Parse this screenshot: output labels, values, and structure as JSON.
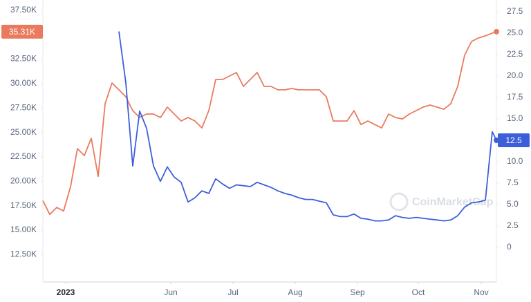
{
  "chart_data": {
    "type": "line",
    "watermark": "CoinMarketCap",
    "x": [
      0,
      1,
      2,
      3,
      4,
      5,
      6,
      7,
      8,
      9,
      10,
      11,
      12,
      13,
      14,
      15,
      16,
      17,
      18,
      19,
      20,
      21,
      22,
      23,
      24,
      25,
      26,
      27,
      28,
      29,
      30,
      31,
      32,
      33,
      34,
      35,
      36,
      37,
      38,
      39,
      40,
      41,
      42,
      43,
      44,
      45,
      46,
      47,
      48,
      49,
      50,
      51,
      52,
      53,
      54,
      55,
      56,
      57,
      58,
      59,
      60,
      61,
      62,
      63,
      64,
      65,
      65.6
    ],
    "xlim": [
      0,
      65.6
    ],
    "xticks": [
      {
        "value": 3.3,
        "label": "2023"
      },
      {
        "value": 18.5,
        "label": "Jun"
      },
      {
        "value": 27.5,
        "label": "Jul"
      },
      {
        "value": 36.5,
        "label": "Aug"
      },
      {
        "value": 45.5,
        "label": "Sep"
      },
      {
        "value": 54.3,
        "label": "Oct"
      },
      {
        "value": 63.4,
        "label": "Nov"
      }
    ],
    "ylim": [
      9700,
      38550
    ],
    "yticks": [
      {
        "value": 12500,
        "label": "12.50K"
      },
      {
        "value": 15000,
        "label": "15.00K"
      },
      {
        "value": 17500,
        "label": "17.50K"
      },
      {
        "value": 20000,
        "label": "20.00K"
      },
      {
        "value": 22500,
        "label": "22.50K"
      },
      {
        "value": 25000,
        "label": "25.00K"
      },
      {
        "value": 27500,
        "label": "27.50K"
      },
      {
        "value": 30000,
        "label": "30.00K"
      },
      {
        "value": 32500,
        "label": "32.50K"
      },
      {
        "value": 35000,
        "label": "35.00K"
      },
      {
        "value": 37500,
        "label": "37.50K"
      }
    ],
    "y2lim": [
      -4.03,
      28.87
    ],
    "y2ticks": [
      0,
      2.5,
      {
        "value": 5,
        "label": "5.0"
      },
      7.5,
      {
        "value": 10,
        "label": "10.0"
      },
      12.5,
      {
        "value": 15,
        "label": "15.0"
      },
      17.5,
      {
        "value": 20,
        "label": "20.0"
      },
      22.5,
      {
        "value": 25,
        "label": "25.0"
      },
      27.5
    ],
    "series": [
      {
        "color": "#ea7a5e",
        "axis": "y",
        "values": [
          18020,
          16610,
          17320,
          16960,
          19440,
          23340,
          22630,
          24400,
          20500,
          27940,
          30060,
          29360,
          28650,
          27230,
          26520,
          26880,
          26880,
          26520,
          27590,
          26880,
          26170,
          26520,
          26170,
          25460,
          27230,
          30420,
          30420,
          30770,
          31130,
          29710,
          30420,
          31130,
          29710,
          29710,
          29360,
          29360,
          29500,
          29360,
          29360,
          29360,
          29360,
          28650,
          26170,
          26170,
          26170,
          27230,
          25810,
          26170,
          25810,
          25460,
          26880,
          26520,
          26380,
          26880,
          27230,
          27590,
          27800,
          27590,
          27370,
          27940,
          29710,
          32900,
          34310,
          34670,
          34880,
          35160,
          35310
        ],
        "value_labels": [
          null,
          null,
          null,
          null,
          null,
          null,
          null,
          null,
          null,
          null,
          null,
          null,
          null,
          null,
          null,
          null,
          null,
          null,
          null,
          null,
          null,
          null,
          null,
          null,
          null,
          null,
          null,
          null,
          null,
          null,
          null,
          null,
          null,
          null,
          null,
          null,
          null,
          null,
          null,
          null,
          null,
          null,
          null,
          null,
          null,
          null,
          null,
          null,
          null,
          null,
          null,
          null,
          null,
          null,
          null,
          null,
          null,
          null,
          null,
          null,
          null,
          null,
          null,
          null,
          null,
          null,
          "35.31K"
        ]
      },
      {
        "color": "#3b5fd9",
        "axis": "y2",
        "values": [
          null,
          null,
          null,
          null,
          null,
          null,
          null,
          null,
          null,
          null,
          null,
          25.2,
          19.2,
          9.5,
          15.9,
          13.9,
          9.5,
          7.7,
          9.4,
          8.2,
          7.6,
          5.3,
          5.8,
          6.6,
          6.3,
          8.0,
          7.4,
          6.9,
          7.3,
          7.2,
          7.1,
          7.6,
          7.3,
          7.0,
          6.6,
          6.3,
          6.1,
          5.8,
          5.6,
          5.6,
          5.4,
          5.2,
          3.8,
          3.6,
          3.6,
          3.9,
          3.4,
          3.3,
          3.1,
          3.1,
          3.2,
          3.7,
          3.5,
          3.4,
          3.5,
          3.4,
          3.3,
          3.2,
          3.1,
          3.2,
          3.7,
          4.7,
          5.2,
          5.3,
          5.5,
          13.5,
          12.5
        ],
        "value_labels": [
          null,
          null,
          null,
          null,
          null,
          null,
          null,
          null,
          null,
          null,
          null,
          null,
          null,
          null,
          null,
          null,
          null,
          null,
          null,
          null,
          null,
          null,
          null,
          null,
          null,
          null,
          null,
          null,
          null,
          null,
          null,
          null,
          null,
          null,
          null,
          null,
          null,
          null,
          null,
          null,
          null,
          null,
          null,
          null,
          null,
          null,
          null,
          null,
          null,
          null,
          null,
          null,
          null,
          null,
          null,
          null,
          null,
          null,
          null,
          null,
          null,
          null,
          null,
          null,
          null,
          null,
          "12.5"
        ]
      }
    ]
  }
}
